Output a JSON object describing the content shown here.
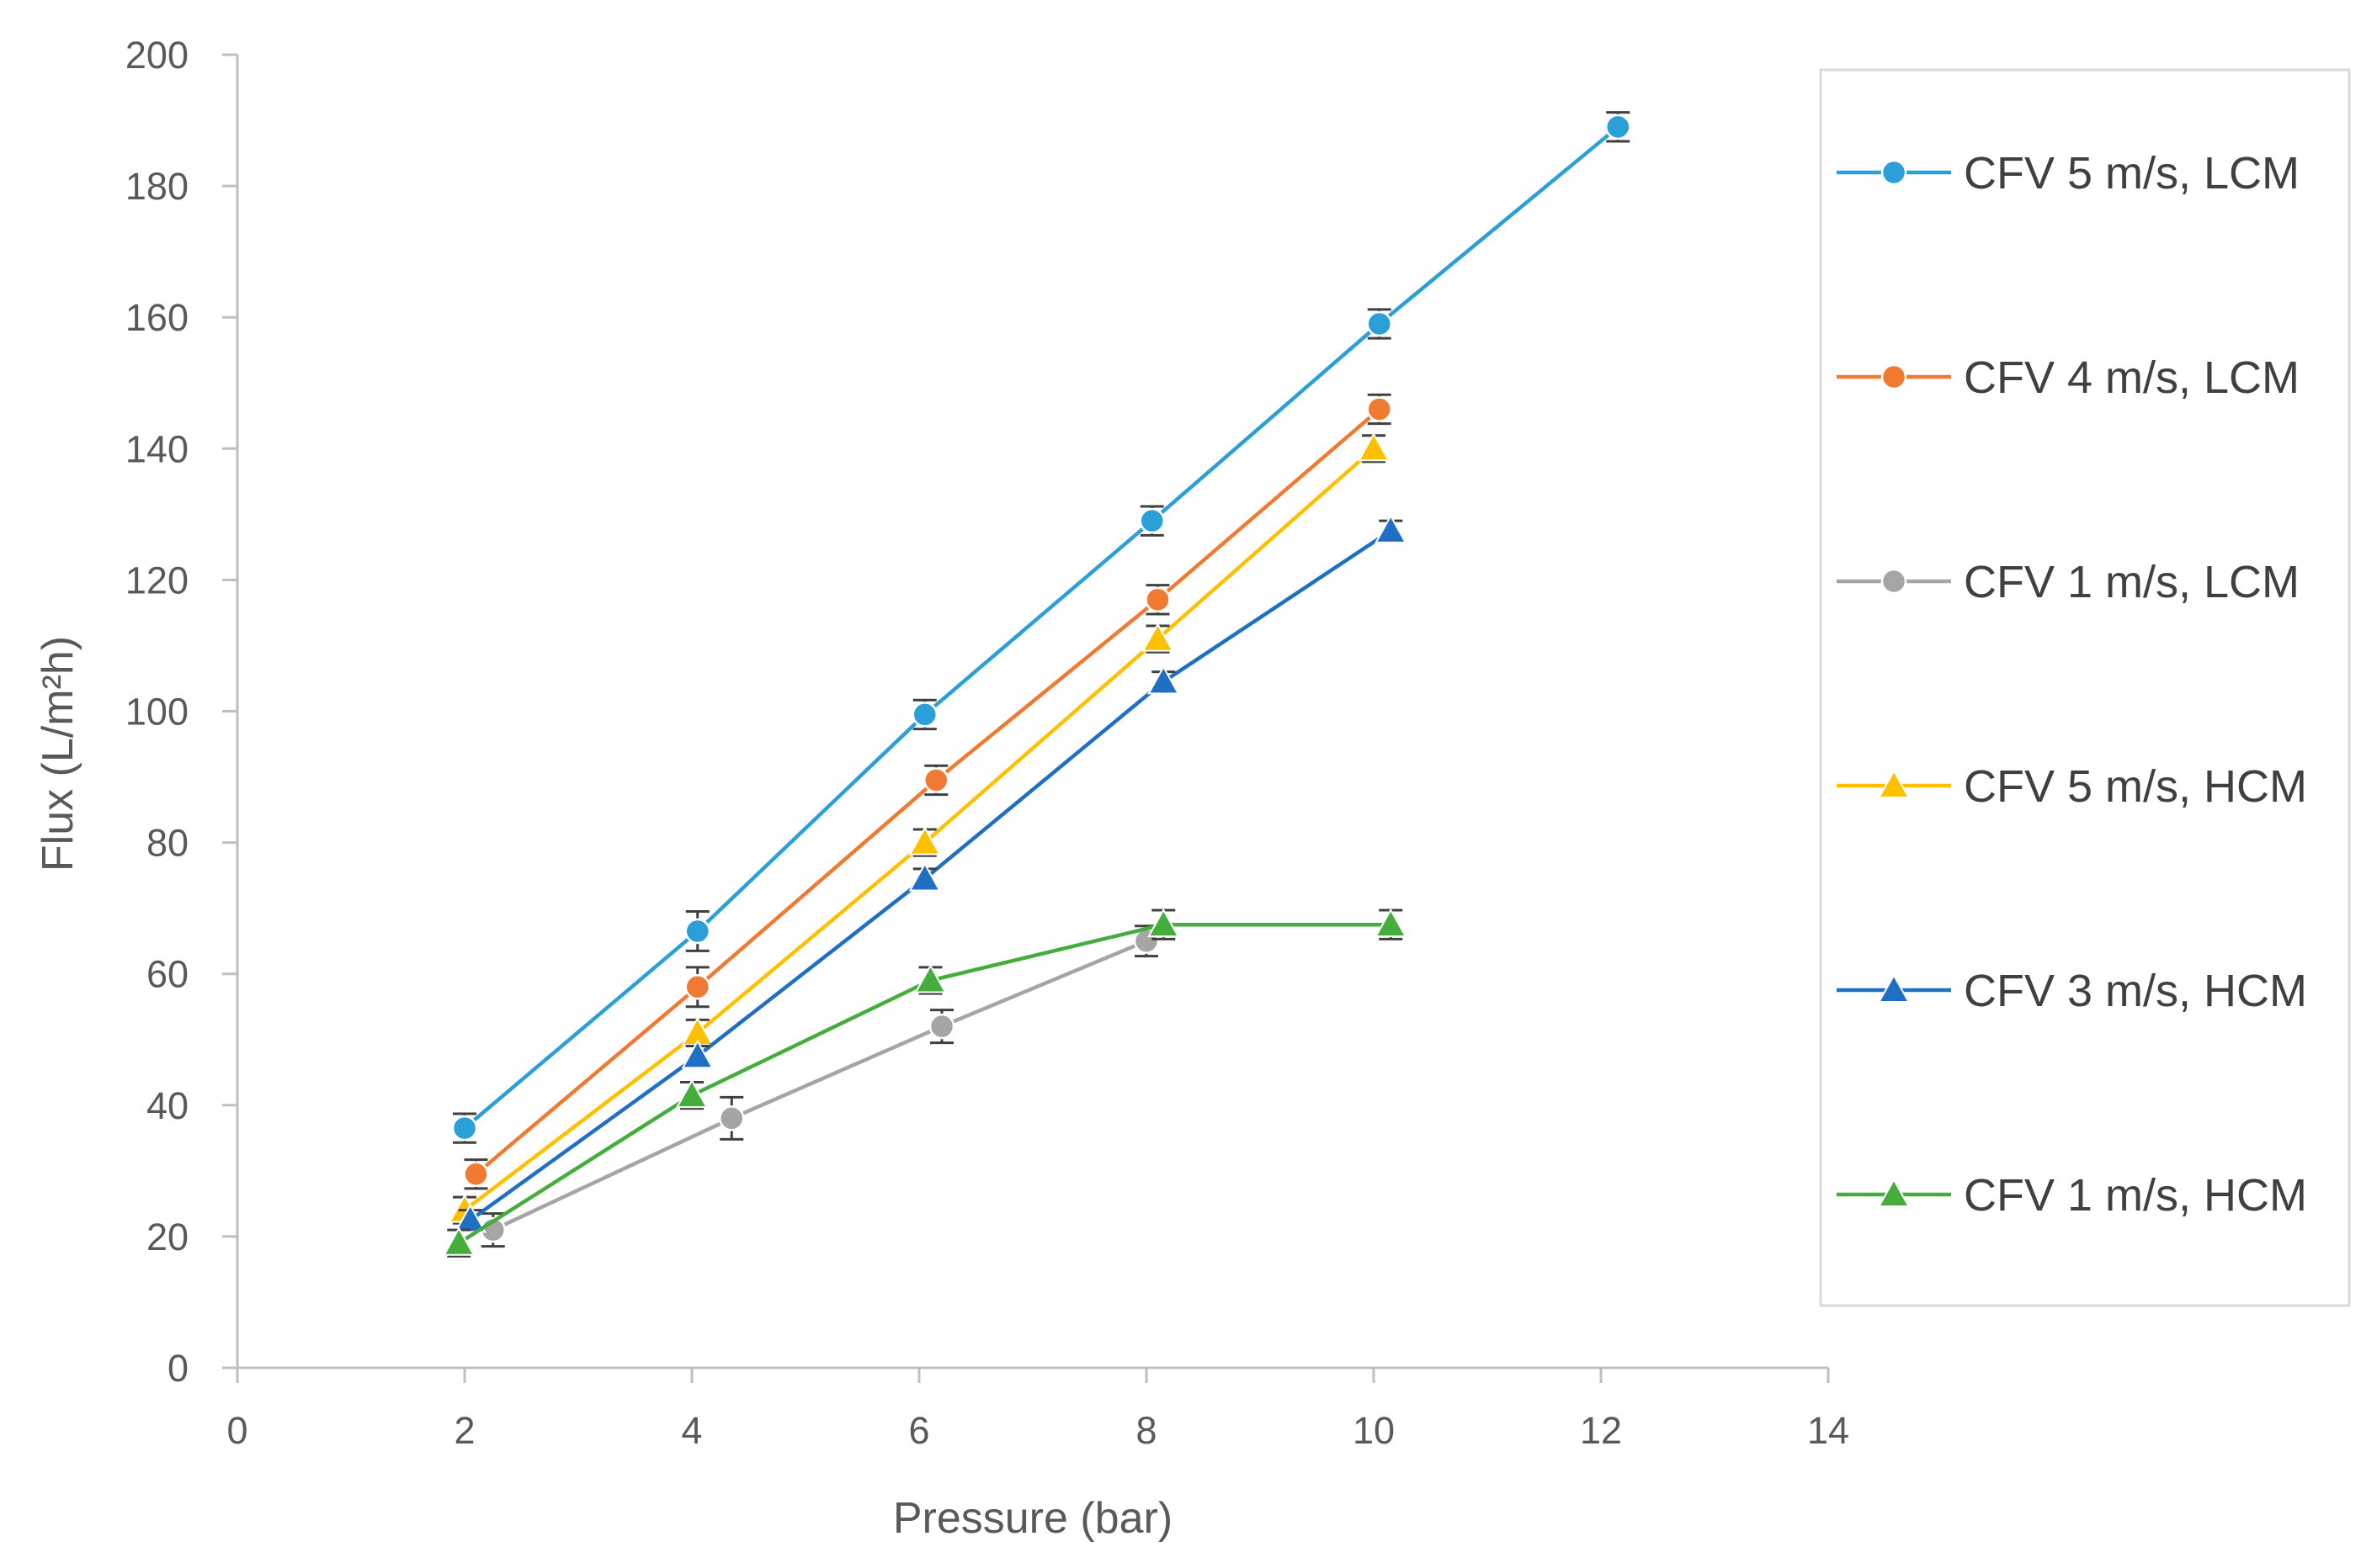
{
  "chart_data": {
    "type": "line",
    "title": "",
    "xlabel": "Pressure  (bar)",
    "ylabel": "Flux  (L/m²h)",
    "xlim": [
      0,
      14
    ],
    "ylim": [
      0,
      200
    ],
    "x_ticks": [
      0,
      2,
      4,
      6,
      8,
      10,
      12,
      14
    ],
    "y_ticks": [
      0,
      20,
      40,
      60,
      80,
      100,
      120,
      140,
      160,
      180,
      200
    ],
    "grid": false,
    "legend_position": "right",
    "series": [
      {
        "name": "CFV 5 m/s, LCM",
        "color": "#2a9fd8",
        "marker": "circle",
        "x": [
          2.0,
          4.05,
          6.05,
          8.05,
          10.05,
          12.15
        ],
        "y": [
          36.5,
          66.5,
          99.5,
          129,
          159,
          189
        ],
        "err": [
          2.2,
          3,
          2.2,
          2.2,
          2.2,
          2.2
        ]
      },
      {
        "name": "CFV 4 m/s, LCM",
        "color": "#f07a32",
        "marker": "circle",
        "x": [
          2.1,
          4.05,
          6.15,
          8.1,
          10.05
        ],
        "y": [
          29.5,
          58,
          89.5,
          117,
          146
        ],
        "err": [
          2.2,
          3,
          2.2,
          2.2,
          2.2
        ]
      },
      {
        "name": "CFV 1 m/s, LCM",
        "color": "#a5a5a5",
        "marker": "circle",
        "x": [
          2.25,
          4.35,
          6.2,
          8.0
        ],
        "y": [
          21,
          38,
          52,
          65
        ],
        "err": [
          2.5,
          3.2,
          2.5,
          2.3
        ]
      },
      {
        "name": "CFV 5 m/s, HCM",
        "color": "#ffc000",
        "marker": "triangle",
        "x": [
          2.0,
          4.05,
          6.05,
          8.1,
          10.0
        ],
        "y": [
          24,
          51,
          80,
          111,
          140
        ],
        "err": [
          2,
          2,
          2,
          2,
          2
        ]
      },
      {
        "name": "CFV 3 m/s, HCM",
        "color": "#1f6fc5",
        "marker": "triangle",
        "x": [
          2.05,
          4.05,
          6.05,
          8.15,
          10.15
        ],
        "y": [
          22.5,
          47.5,
          74.5,
          104.5,
          127.5
        ],
        "err": [
          1.5,
          1.5,
          1.5,
          1.5,
          1.5
        ]
      },
      {
        "name": "CFV 1 m/s, HCM",
        "color": "#44ad3c",
        "marker": "triangle",
        "x": [
          1.95,
          4.0,
          6.1,
          8.15,
          10.15
        ],
        "y": [
          19,
          41.5,
          59,
          67.5,
          67.5
        ],
        "err": [
          2,
          2,
          2,
          2.2,
          2.2
        ]
      }
    ]
  }
}
